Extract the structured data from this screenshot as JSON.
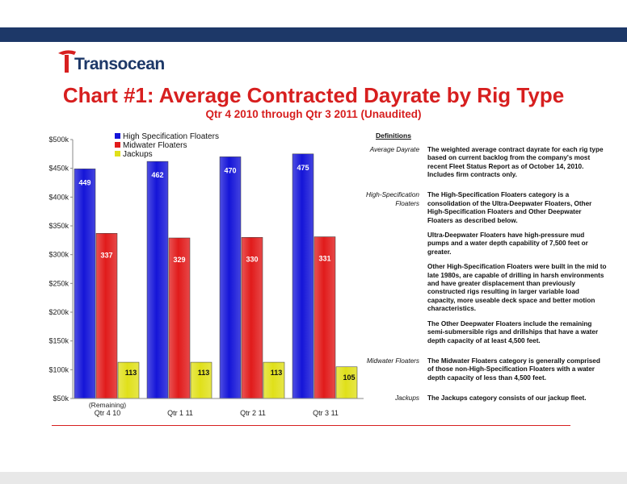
{
  "brand": {
    "name": "Transocean",
    "accent": "#d71f1f",
    "navy": "#1d3868"
  },
  "header": {
    "title": "Chart #1: Average Contracted Dayrate by Rig Type",
    "subtitle": "Qtr 4 2010 through Qtr 3 2011 (Unaudited)"
  },
  "chart_data": {
    "type": "bar",
    "categories": [
      "Qtr 4 10",
      "Qtr 1 11",
      "Qtr 2 11",
      "Qtr 3 11"
    ],
    "category_note": "(Remaining)",
    "series": [
      {
        "name": "High Specification Floaters",
        "values": [
          449,
          462,
          470,
          475
        ],
        "color": "#1515d8"
      },
      {
        "name": "Midwater Floaters",
        "values": [
          337,
          329,
          330,
          331
        ],
        "color": "#e11b1b"
      },
      {
        "name": "Jackups",
        "values": [
          113,
          113,
          113,
          105
        ],
        "color": "#e0e01a"
      }
    ],
    "yticks": [
      "$50k",
      "$100k",
      "$150k",
      "$200k",
      "$250k",
      "$300k",
      "$350k",
      "$400k",
      "$450k",
      "$500k"
    ],
    "ylim": [
      50,
      500
    ],
    "legend": "top-left"
  },
  "definitions": {
    "heading": "Definitions",
    "items": [
      {
        "term": "Average Dayrate",
        "paras": [
          "The weighted average contract dayrate for each rig type based on current backlog from the company's most recent Fleet Status Report as of October 14, 2010. Includes firm contracts only."
        ]
      },
      {
        "term": "High-Specification Floaters",
        "paras": [
          "The High-Specification Floaters category is a consolidation of the Ultra-Deepwater Floaters, Other High-Specification Floaters and Other Deepwater Floaters as described below.",
          "Ultra-Deepwater Floaters have high-pressure mud pumps and a water depth capability of 7,500 feet or greater.",
          "Other High-Specification Floaters were built in the mid to late 1980s, are capable of drilling in harsh environments and have greater displacement than previously constructed rigs resulting in larger variable load capacity, more useable deck space and better motion characteristics.",
          "The Other Deepwater Floaters include the remaining semi-submersible rigs and drillships that have a water depth capacity of at least 4,500 feet."
        ]
      },
      {
        "term": "Midwater Floaters",
        "paras": [
          "The Midwater Floaters category is generally comprised of those non-High-Specification Floaters with a water depth capacity of less than 4,500 feet."
        ]
      },
      {
        "term": "Jackups",
        "paras": [
          "The Jackups category consists of our jackup fleet."
        ]
      }
    ]
  }
}
